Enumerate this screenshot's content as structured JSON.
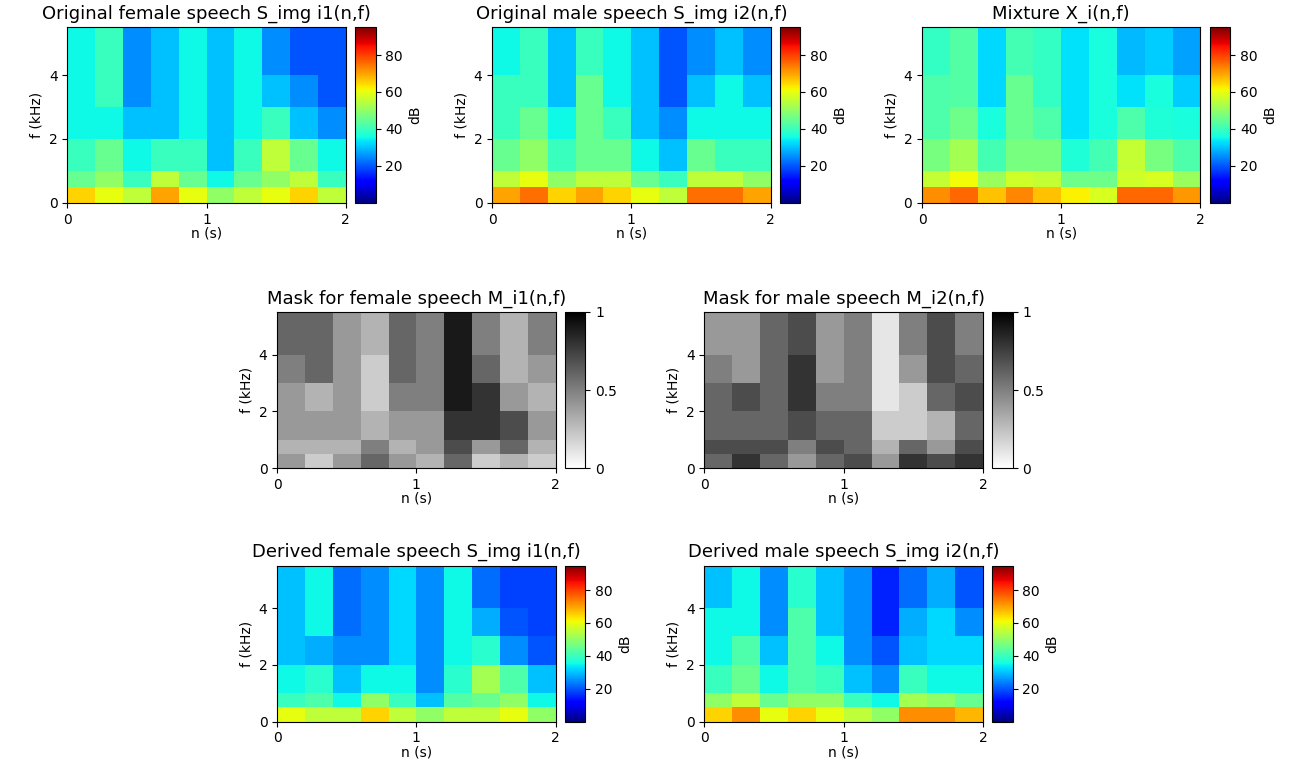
{
  "chart_data": [
    {
      "type": "heatmap",
      "title": "Original female speech S_img i1(n,f)",
      "x_label": "n (s)",
      "y_label": "f (kHz)",
      "x_edges": [
        0,
        0.2,
        0.4,
        0.6,
        0.8,
        1.0,
        1.2,
        1.4,
        1.6,
        1.8,
        2.0
      ],
      "y_edges": [
        0,
        0.5,
        1,
        2,
        3,
        4,
        5.5
      ],
      "xlim": [
        0,
        2
      ],
      "ylim": [
        0,
        5.5
      ],
      "xticks": [
        0,
        1,
        2
      ],
      "yticks": [
        0,
        2,
        4
      ],
      "color": "jet",
      "values": [
        [
          65,
          60,
          55,
          70,
          60,
          50,
          55,
          60,
          65,
          55
        ],
        [
          45,
          50,
          40,
          55,
          45,
          35,
          45,
          50,
          55,
          40
        ],
        [
          40,
          45,
          35,
          40,
          40,
          30,
          40,
          55,
          45,
          35
        ],
        [
          35,
          35,
          30,
          30,
          35,
          30,
          35,
          40,
          30,
          25
        ],
        [
          35,
          40,
          25,
          30,
          35,
          30,
          35,
          30,
          25,
          20
        ],
        [
          35,
          40,
          25,
          30,
          35,
          30,
          35,
          25,
          20,
          20
        ]
      ],
      "colorbar": {
        "label": "dB",
        "range": [
          0,
          95
        ],
        "ticks": [
          20,
          40,
          60,
          80
        ]
      }
    },
    {
      "type": "heatmap",
      "title": "Original male speech S_img i2(n,f)",
      "x_label": "n (s)",
      "y_label": "f (kHz)",
      "x_edges": [
        0,
        0.2,
        0.4,
        0.6,
        0.8,
        1.0,
        1.2,
        1.4,
        1.6,
        1.8,
        2.0
      ],
      "y_edges": [
        0,
        0.5,
        1,
        2,
        3,
        4,
        5.5
      ],
      "xlim": [
        0,
        2
      ],
      "ylim": [
        0,
        5.5
      ],
      "xticks": [
        0,
        1,
        2
      ],
      "yticks": [
        0,
        2,
        4
      ],
      "color": "jet",
      "values": [
        [
          70,
          75,
          65,
          70,
          65,
          60,
          55,
          75,
          75,
          70
        ],
        [
          55,
          60,
          50,
          55,
          55,
          45,
          40,
          55,
          55,
          50
        ],
        [
          45,
          50,
          40,
          45,
          45,
          35,
          30,
          45,
          40,
          40
        ],
        [
          40,
          45,
          35,
          45,
          40,
          30,
          25,
          35,
          35,
          35
        ],
        [
          40,
          40,
          30,
          45,
          35,
          30,
          20,
          30,
          35,
          30
        ],
        [
          35,
          40,
          30,
          40,
          35,
          30,
          20,
          25,
          30,
          25
        ]
      ],
      "colorbar": {
        "label": "dB",
        "range": [
          0,
          95
        ],
        "ticks": [
          20,
          40,
          60,
          80
        ]
      }
    },
    {
      "type": "heatmap",
      "title": "Mixture X_i(n,f)",
      "x_label": "n (s)",
      "y_label": "f (kHz)",
      "x_edges": [
        0,
        0.2,
        0.4,
        0.6,
        0.8,
        1.0,
        1.2,
        1.4,
        1.6,
        1.8,
        2.0
      ],
      "y_edges": [
        0,
        0.5,
        1,
        2,
        3,
        4,
        5.5
      ],
      "xlim": [
        0,
        2
      ],
      "ylim": [
        0,
        5.5
      ],
      "xticks": [
        0,
        1,
        2
      ],
      "yticks": [
        0,
        2,
        4
      ],
      "color": "jet",
      "values": [
        [
          72,
          76,
          67,
          73,
          67,
          62,
          58,
          76,
          76,
          71
        ],
        [
          56,
          61,
          51,
          57,
          56,
          46,
          46,
          57,
          58,
          51
        ],
        [
          47,
          52,
          41,
          47,
          47,
          37,
          41,
          56,
          47,
          42
        ],
        [
          42,
          46,
          36,
          45,
          42,
          33,
          36,
          42,
          37,
          36
        ],
        [
          42,
          43,
          32,
          45,
          39,
          33,
          36,
          33,
          36,
          31
        ],
        [
          39,
          43,
          32,
          41,
          39,
          33,
          36,
          29,
          31,
          27
        ]
      ],
      "colorbar": {
        "label": "dB",
        "range": [
          0,
          95
        ],
        "ticks": [
          20,
          40,
          60,
          80
        ]
      }
    },
    {
      "type": "heatmap",
      "title": "Mask for female speech M_i1(n,f)",
      "x_label": "n (s)",
      "y_label": "f (kHz)",
      "x_edges": [
        0,
        0.2,
        0.4,
        0.6,
        0.8,
        1.0,
        1.2,
        1.4,
        1.6,
        1.8,
        2.0
      ],
      "y_edges": [
        0,
        0.5,
        1,
        2,
        3,
        4,
        5.5
      ],
      "xlim": [
        0,
        2
      ],
      "ylim": [
        0,
        5.5
      ],
      "xticks": [
        0,
        1,
        2
      ],
      "yticks": [
        0,
        2,
        4
      ],
      "color": "gray_r",
      "values": [
        [
          0.4,
          0.2,
          0.4,
          0.6,
          0.4,
          0.3,
          0.6,
          0.2,
          0.3,
          0.2
        ],
        [
          0.3,
          0.3,
          0.3,
          0.5,
          0.3,
          0.4,
          0.7,
          0.4,
          0.6,
          0.3
        ],
        [
          0.4,
          0.4,
          0.4,
          0.3,
          0.4,
          0.4,
          0.8,
          0.8,
          0.7,
          0.4
        ],
        [
          0.4,
          0.3,
          0.4,
          0.2,
          0.5,
          0.5,
          0.9,
          0.8,
          0.4,
          0.3
        ],
        [
          0.5,
          0.6,
          0.4,
          0.2,
          0.6,
          0.5,
          0.9,
          0.6,
          0.3,
          0.4
        ],
        [
          0.6,
          0.6,
          0.4,
          0.3,
          0.6,
          0.5,
          0.9,
          0.5,
          0.3,
          0.5
        ]
      ],
      "colorbar": {
        "range": [
          0,
          1
        ],
        "ticks": [
          0,
          0.5,
          1
        ]
      }
    },
    {
      "type": "heatmap",
      "title": "Mask for male speech M_i2(n,f)",
      "x_label": "n (s)",
      "y_label": "f (kHz)",
      "x_edges": [
        0,
        0.2,
        0.4,
        0.6,
        0.8,
        1.0,
        1.2,
        1.4,
        1.6,
        1.8,
        2.0
      ],
      "y_edges": [
        0,
        0.5,
        1,
        2,
        3,
        4,
        5.5
      ],
      "xlim": [
        0,
        2
      ],
      "ylim": [
        0,
        5.5
      ],
      "xticks": [
        0,
        1,
        2
      ],
      "yticks": [
        0,
        2,
        4
      ],
      "color": "gray_r",
      "values": [
        [
          0.6,
          0.8,
          0.6,
          0.4,
          0.6,
          0.7,
          0.4,
          0.8,
          0.7,
          0.8
        ],
        [
          0.7,
          0.7,
          0.7,
          0.5,
          0.7,
          0.6,
          0.3,
          0.6,
          0.4,
          0.7
        ],
        [
          0.6,
          0.6,
          0.6,
          0.7,
          0.6,
          0.6,
          0.2,
          0.2,
          0.3,
          0.6
        ],
        [
          0.6,
          0.7,
          0.6,
          0.8,
          0.5,
          0.5,
          0.1,
          0.2,
          0.6,
          0.7
        ],
        [
          0.5,
          0.4,
          0.6,
          0.8,
          0.4,
          0.5,
          0.1,
          0.4,
          0.7,
          0.6
        ],
        [
          0.4,
          0.4,
          0.6,
          0.7,
          0.4,
          0.5,
          0.1,
          0.5,
          0.7,
          0.5
        ]
      ],
      "colorbar": {
        "range": [
          0,
          1
        ],
        "ticks": [
          0,
          0.5,
          1
        ]
      }
    },
    {
      "type": "heatmap",
      "title": "Derived female speech S_img i1(n,f)",
      "x_label": "n (s)",
      "y_label": "f (kHz)",
      "x_edges": [
        0,
        0.2,
        0.4,
        0.6,
        0.8,
        1.0,
        1.2,
        1.4,
        1.6,
        1.8,
        2.0
      ],
      "y_edges": [
        0,
        0.5,
        1,
        2,
        3,
        4,
        5.5
      ],
      "xlim": [
        0,
        2
      ],
      "ylim": [
        0,
        5.5
      ],
      "xticks": [
        0,
        1,
        2
      ],
      "yticks": [
        0,
        2,
        4
      ],
      "color": "jet",
      "values": [
        [
          60,
          55,
          55,
          65,
          55,
          50,
          55,
          55,
          60,
          50
        ],
        [
          40,
          42,
          35,
          50,
          40,
          30,
          43,
          45,
          50,
          35
        ],
        [
          35,
          38,
          30,
          35,
          35,
          25,
          38,
          52,
          42,
          30
        ],
        [
          30,
          28,
          25,
          25,
          32,
          25,
          35,
          38,
          25,
          20
        ],
        [
          30,
          35,
          22,
          25,
          32,
          25,
          35,
          28,
          20,
          18
        ],
        [
          30,
          35,
          22,
          25,
          32,
          25,
          35,
          22,
          18,
          18
        ]
      ],
      "colorbar": {
        "label": "dB",
        "range": [
          0,
          95
        ],
        "ticks": [
          20,
          40,
          60,
          80
        ]
      }
    },
    {
      "type": "heatmap",
      "title": "Derived male speech S_img i2(n,f)",
      "x_label": "n (s)",
      "y_label": "f (kHz)",
      "x_edges": [
        0,
        0.2,
        0.4,
        0.6,
        0.8,
        1.0,
        1.2,
        1.4,
        1.6,
        1.8,
        2.0
      ],
      "y_edges": [
        0,
        0.5,
        1,
        2,
        3,
        4,
        5.5
      ],
      "xlim": [
        0,
        2
      ],
      "ylim": [
        0,
        5.5
      ],
      "xticks": [
        0,
        1,
        2
      ],
      "yticks": [
        0,
        2,
        4
      ],
      "color": "jet",
      "values": [
        [
          65,
          72,
          60,
          65,
          60,
          55,
          50,
          72,
          72,
          68
        ],
        [
          50,
          55,
          45,
          50,
          50,
          40,
          35,
          52,
          50,
          45
        ],
        [
          40,
          45,
          35,
          42,
          40,
          30,
          25,
          40,
          35,
          35
        ],
        [
          35,
          42,
          30,
          42,
          35,
          25,
          20,
          30,
          32,
          32
        ],
        [
          35,
          35,
          25,
          42,
          30,
          25,
          15,
          28,
          32,
          25
        ],
        [
          30,
          35,
          25,
          38,
          30,
          25,
          15,
          22,
          28,
          20
        ]
      ],
      "colorbar": {
        "label": "dB",
        "range": [
          0,
          95
        ],
        "ticks": [
          20,
          40,
          60,
          80
        ]
      }
    }
  ]
}
